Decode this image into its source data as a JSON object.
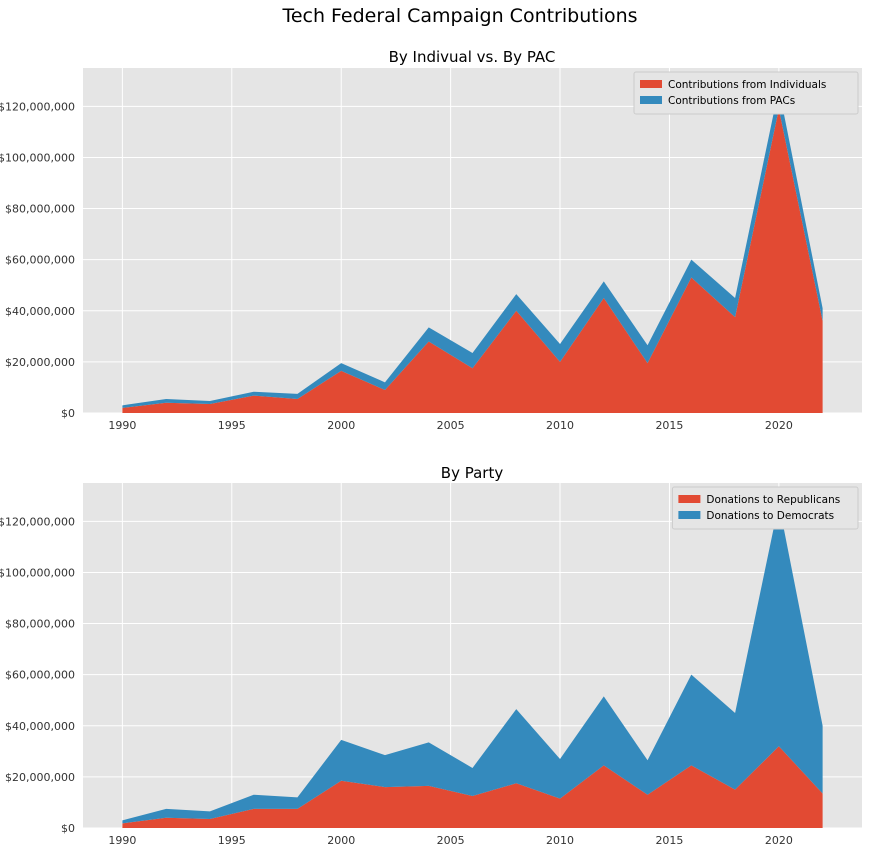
{
  "title": "Tech Federal Campaign Contributions",
  "colors": {
    "red": "#E24A33",
    "blue": "#348ABD",
    "panel_bg": "#E5E5E5",
    "grid": "#FFFFFF"
  },
  "chart_data": [
    {
      "type": "area",
      "stacked": true,
      "title": "By Indivual vs. By PAC",
      "xlabel": "",
      "ylabel": "",
      "x": [
        1990,
        1992,
        1994,
        1996,
        1998,
        2000,
        2002,
        2004,
        2006,
        2008,
        2010,
        2012,
        2014,
        2016,
        2018,
        2020,
        2022
      ],
      "xlim": [
        1988.2,
        2023.8
      ],
      "ylim": [
        0,
        135000000
      ],
      "xticks": [
        1990,
        1995,
        2000,
        2005,
        2010,
        2015,
        2020
      ],
      "yticks": [
        0,
        20000000,
        40000000,
        60000000,
        80000000,
        100000000,
        120000000
      ],
      "ytick_labels": [
        "$0",
        "$20,000,000",
        "$40,000,000",
        "$60,000,000",
        "$80,000,000",
        "$100,000,000",
        "$120,000,000"
      ],
      "grid": true,
      "legend_position": "top-right",
      "series": [
        {
          "name": "Contributions from Individuals",
          "color": "#E24A33",
          "values": [
            2000000,
            4000000,
            3500000,
            6800000,
            5500000,
            16500000,
            9000000,
            28000000,
            17500000,
            40000000,
            20000000,
            45000000,
            19500000,
            53000000,
            37500000,
            119000000,
            36000000
          ]
        },
        {
          "name": "Contributions from PACs",
          "color": "#348ABD",
          "values": [
            1000000,
            1500000,
            1200000,
            1500000,
            2000000,
            3000000,
            3000000,
            5500000,
            6000000,
            6500000,
            7000000,
            6500000,
            7000000,
            7000000,
            7500000,
            8000000,
            5000000
          ]
        }
      ]
    },
    {
      "type": "area",
      "stacked": true,
      "title": "By Party",
      "xlabel": "",
      "ylabel": "",
      "x": [
        1990,
        1992,
        1994,
        1996,
        1998,
        2000,
        2002,
        2004,
        2006,
        2008,
        2010,
        2012,
        2014,
        2016,
        2018,
        2020,
        2022
      ],
      "xlim": [
        1988.2,
        2023.8
      ],
      "ylim": [
        0,
        135000000
      ],
      "xticks": [
        1990,
        1995,
        2000,
        2005,
        2010,
        2015,
        2020
      ],
      "yticks": [
        0,
        20000000,
        40000000,
        60000000,
        80000000,
        100000000,
        120000000
      ],
      "ytick_labels": [
        "$0",
        "$20,000,000",
        "$40,000,000",
        "$60,000,000",
        "$80,000,000",
        "$100,000,000",
        "$120,000,000"
      ],
      "grid": true,
      "legend_position": "top-right",
      "series": [
        {
          "name": "Donations to Republicans",
          "color": "#E24A33",
          "values": [
            1800000,
            4000000,
            3500000,
            7500000,
            7500000,
            18500000,
            16000000,
            16500000,
            12500000,
            17500000,
            11500000,
            24500000,
            13000000,
            24500000,
            15000000,
            32000000,
            13500000
          ]
        },
        {
          "name": "Donations to Democrats",
          "color": "#348ABD",
          "values": [
            1200000,
            3500000,
            3000000,
            5500000,
            4500000,
            16000000,
            12500000,
            17000000,
            11000000,
            29000000,
            15500000,
            27000000,
            13500000,
            35500000,
            30000000,
            95000000,
            26500000
          ]
        }
      ]
    }
  ]
}
